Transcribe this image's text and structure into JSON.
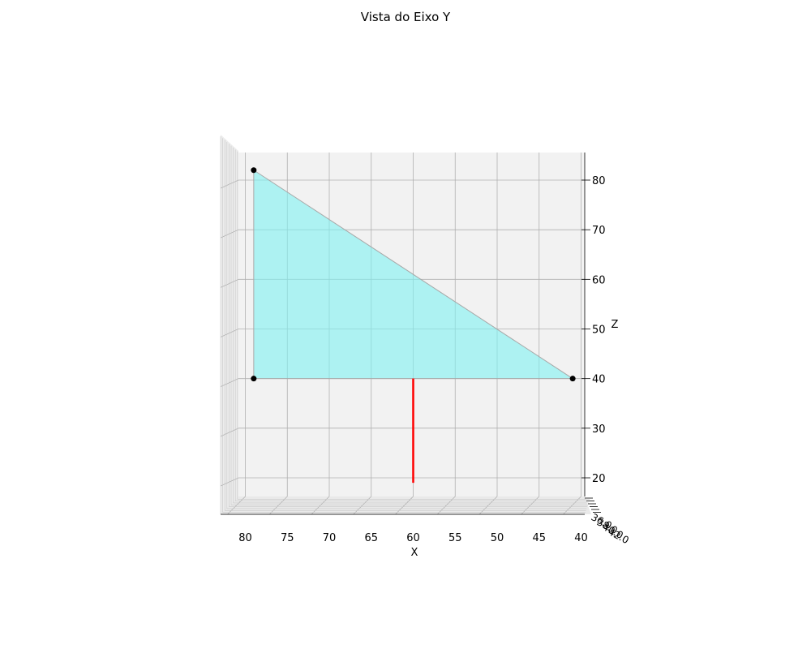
{
  "chart_data": {
    "type": "3d-projection",
    "title": "Vista do Eixo Y",
    "xlabel": "X",
    "zlabel": "Z",
    "x_ticks": [
      80,
      75,
      70,
      65,
      60,
      55,
      50,
      45,
      40
    ],
    "z_ticks": [
      20,
      30,
      40,
      50,
      60,
      70,
      80
    ],
    "y_tick_labels": [
      "36.0",
      "38.0",
      "40.0",
      "42.0"
    ],
    "xlim": [
      83.3,
      38.3
    ],
    "zlim": [
      15,
      85
    ],
    "triangle": {
      "points": [
        {
          "x": 79,
          "z": 82
        },
        {
          "x": 79,
          "z": 40
        },
        {
          "x": 41,
          "z": 40
        }
      ],
      "fill_color": "#7ff2f2",
      "edge_color": "#a8a8a8",
      "point_color": "#000000"
    },
    "segment": {
      "x": 60,
      "z_from": 40,
      "z_to": 19,
      "color": "#ff0000"
    },
    "pane_color": "#f2f2f2",
    "grid": true
  }
}
